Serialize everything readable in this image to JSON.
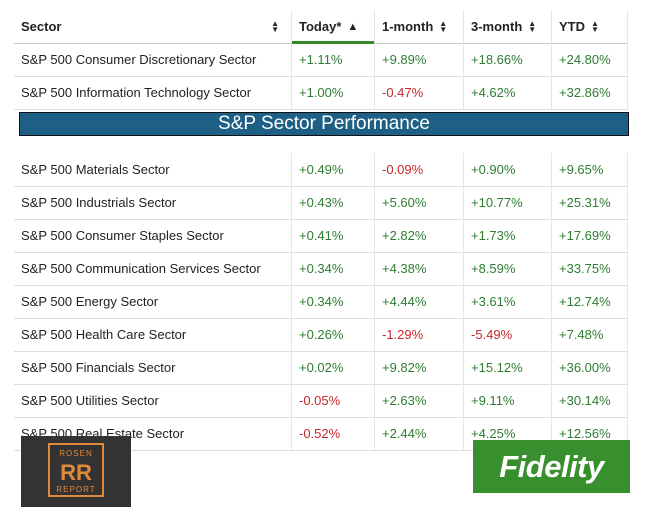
{
  "table": {
    "headers": [
      {
        "label": "Sector",
        "sort": "both"
      },
      {
        "label": "Today*",
        "sort": "up"
      },
      {
        "label": "1-month",
        "sort": "both"
      },
      {
        "label": "3-month",
        "sort": "both"
      },
      {
        "label": "YTD",
        "sort": "both"
      }
    ],
    "rows": [
      {
        "sector": "S&P 500 Consumer Discretionary Sector",
        "today": "+1.11%",
        "m1": "+9.89%",
        "m3": "+18.66%",
        "ytd": "+24.80%"
      },
      {
        "sector": "S&P 500 Information Technology Sector",
        "today": "+1.00%",
        "m1": "-0.47%",
        "m3": "+4.62%",
        "ytd": "+32.86%"
      },
      {
        "sector": "S&P 500 Materials Sector",
        "today": "+0.49%",
        "m1": "-0.09%",
        "m3": "+0.90%",
        "ytd": "+9.65%"
      },
      {
        "sector": "S&P 500 Industrials Sector",
        "today": "+0.43%",
        "m1": "+5.60%",
        "m3": "+10.77%",
        "ytd": "+25.31%"
      },
      {
        "sector": "S&P 500 Consumer Staples Sector",
        "today": "+0.41%",
        "m1": "+2.82%",
        "m3": "+1.73%",
        "ytd": "+17.69%"
      },
      {
        "sector": "S&P 500 Communication Services Sector",
        "today": "+0.34%",
        "m1": "+4.38%",
        "m3": "+8.59%",
        "ytd": "+33.75%"
      },
      {
        "sector": "S&P 500 Energy Sector",
        "today": "+0.34%",
        "m1": "+4.44%",
        "m3": "+3.61%",
        "ytd": "+12.74%"
      },
      {
        "sector": "S&P 500 Health Care Sector",
        "today": "+0.26%",
        "m1": "-1.29%",
        "m3": "-5.49%",
        "ytd": "+7.48%"
      },
      {
        "sector": "S&P 500 Financials Sector",
        "today": "+0.02%",
        "m1": "+9.82%",
        "m3": "+15.12%",
        "ytd": "+36.00%"
      },
      {
        "sector": "S&P 500 Utilities Sector",
        "today": "-0.05%",
        "m1": "+2.63%",
        "m3": "+9.11%",
        "ytd": "+30.14%"
      },
      {
        "sector": "S&P 500 Real Estate Sector",
        "today": "-0.52%",
        "m1": "+2.44%",
        "m3": "+4.25%",
        "ytd": "+12.56%"
      }
    ]
  },
  "banner": {
    "title": "S&P Sector Performance"
  },
  "logos": {
    "rosen": {
      "top": "ROSEN",
      "mark": "RR",
      "bottom": "REPORT"
    },
    "fidelity": {
      "name": "Fidelity"
    }
  },
  "colors": {
    "positive": "#2e7d32",
    "negative": "#c62828",
    "accent": "#368727",
    "banner": "#1e5f86"
  }
}
